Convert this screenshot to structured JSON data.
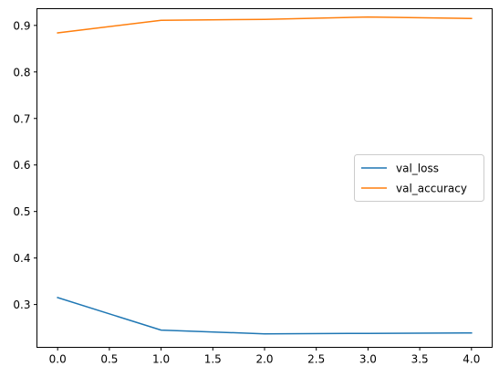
{
  "chart_data": {
    "type": "line",
    "title": "",
    "xlabel": "",
    "ylabel": "",
    "x": [
      0,
      1,
      2,
      3,
      4
    ],
    "xlim": [
      -0.2,
      4.2
    ],
    "ylim": [
      0.208,
      0.936
    ],
    "x_ticks": [
      "0.0",
      "0.5",
      "1.0",
      "1.5",
      "2.0",
      "2.5",
      "3.0",
      "3.5",
      "4.0"
    ],
    "y_ticks": [
      "0.3",
      "0.4",
      "0.5",
      "0.6",
      "0.7",
      "0.8",
      "0.9"
    ],
    "grid": false,
    "legend_position": "center-right",
    "series": [
      {
        "name": "val_loss",
        "color": "#1f77b4",
        "values": [
          0.315,
          0.245,
          0.237,
          0.238,
          0.239
        ]
      },
      {
        "name": "val_accuracy",
        "color": "#ff7f0e",
        "values": [
          0.884,
          0.911,
          0.913,
          0.918,
          0.915
        ]
      }
    ]
  }
}
